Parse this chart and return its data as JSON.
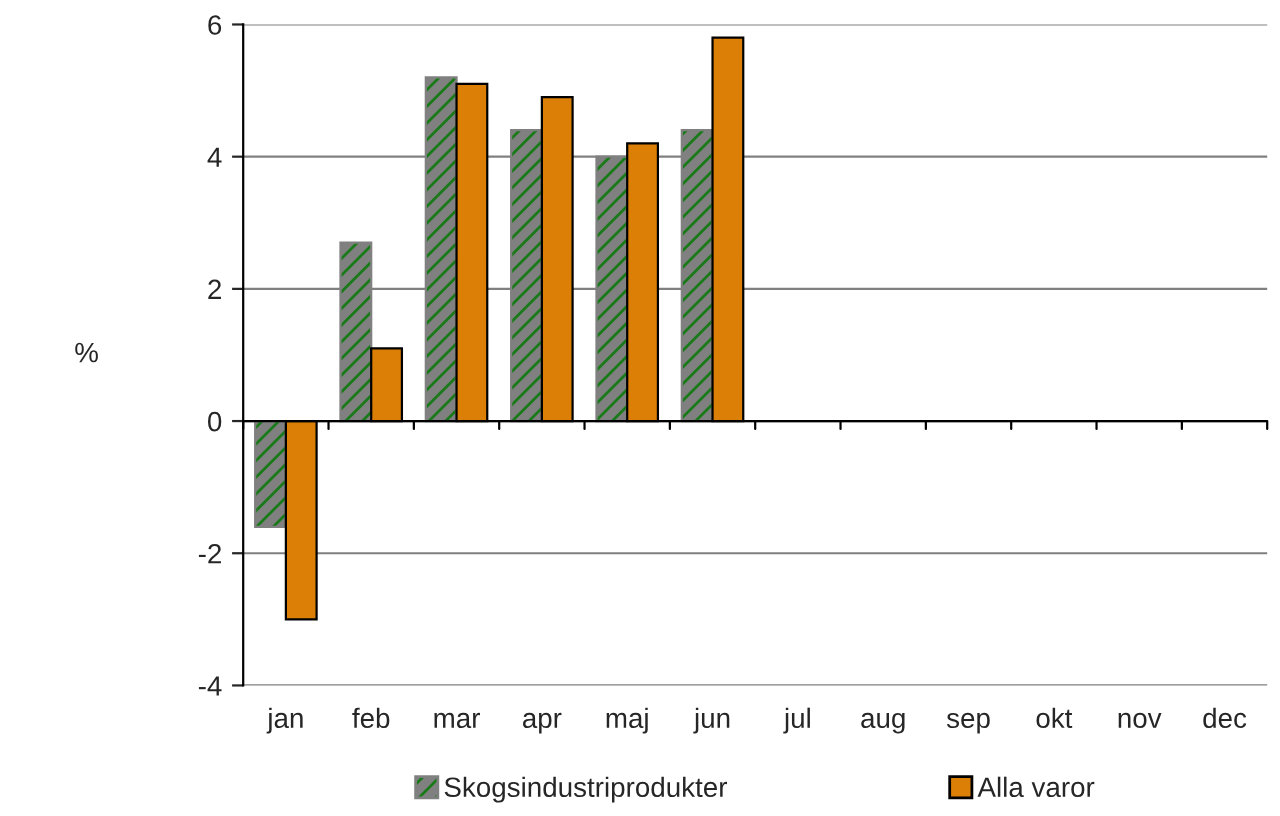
{
  "chart_data": {
    "type": "bar",
    "ylabel": "%",
    "categories": [
      "jan",
      "feb",
      "mar",
      "apr",
      "maj",
      "jun",
      "jul",
      "aug",
      "sep",
      "okt",
      "nov",
      "dec"
    ],
    "series": [
      {
        "name": "Skogsindustriprodukter",
        "color": "#808080",
        "values": [
          -1.6,
          2.7,
          5.2,
          4.4,
          4.0,
          4.4,
          null,
          null,
          null,
          null,
          null,
          null
        ]
      },
      {
        "name": "Alla varor",
        "color": "#dc7f07",
        "values": [
          -3.0,
          1.1,
          5.1,
          4.9,
          4.2,
          5.8,
          null,
          null,
          null,
          null,
          null,
          null
        ]
      }
    ],
    "ylim": [
      -4,
      6
    ],
    "yticks": [
      -4,
      -2,
      0,
      2,
      4,
      6
    ],
    "grid": "y",
    "legend": "bottom"
  }
}
